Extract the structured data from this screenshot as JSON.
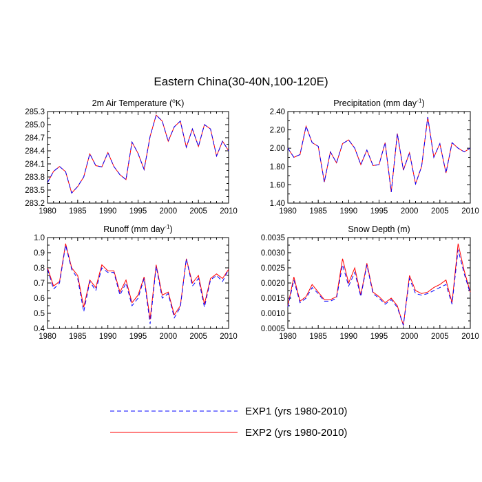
{
  "figure_title": "Eastern China(30-40N,100-120E)",
  "legend": {
    "exp1": "EXP1 (yrs 1980-2010)",
    "exp2": "EXP2 (yrs 1980-2010)"
  },
  "colors": {
    "exp1": "#0000ff",
    "exp2": "#ff0000"
  },
  "chart_data": [
    {
      "type": "line",
      "title": "2m Air Temperature (°K)",
      "title_parts": [
        "2m Air Temperature (",
        "o",
        "K)"
      ],
      "xlim": [
        1980,
        2010
      ],
      "ylim": [
        283.2,
        285.3
      ],
      "xticks": [
        1980,
        1985,
        1990,
        1995,
        2000,
        2005,
        2010
      ],
      "yticks": [
        "283.2",
        "283.5",
        "283.8",
        "284.1",
        "284.4",
        "284.7",
        "285.0",
        "285.3"
      ],
      "x": [
        1980,
        1981,
        1982,
        1983,
        1984,
        1985,
        1986,
        1987,
        1988,
        1989,
        1990,
        1991,
        1992,
        1993,
        1994,
        1995,
        1996,
        1997,
        1998,
        1999,
        2000,
        2001,
        2002,
        2003,
        2004,
        2005,
        2006,
        2007,
        2008,
        2009,
        2010
      ],
      "series": [
        {
          "name": "EXP1",
          "values": [
            283.67,
            283.93,
            284.04,
            283.92,
            283.43,
            283.58,
            283.8,
            284.33,
            284.06,
            284.03,
            284.36,
            284.04,
            283.85,
            283.74,
            284.6,
            284.34,
            283.97,
            284.73,
            285.22,
            285.08,
            284.62,
            284.95,
            285.08,
            284.48,
            284.9,
            284.5,
            285.0,
            284.9,
            284.28,
            284.62,
            284.4
          ]
        },
        {
          "name": "EXP2",
          "values": [
            283.67,
            283.93,
            284.04,
            283.92,
            283.43,
            283.58,
            283.8,
            284.33,
            284.06,
            284.03,
            284.36,
            284.04,
            283.85,
            283.74,
            284.6,
            284.34,
            283.97,
            284.73,
            285.22,
            285.08,
            284.62,
            284.95,
            285.08,
            284.48,
            284.9,
            284.5,
            285.0,
            284.9,
            284.28,
            284.62,
            284.4
          ]
        }
      ]
    },
    {
      "type": "line",
      "title": "Precipitation (mm day-1)",
      "title_parts": [
        "Precipitation (mm day",
        "-1",
        ")"
      ],
      "xlim": [
        1980,
        2010
      ],
      "ylim": [
        1.4,
        2.4
      ],
      "xticks": [
        1980,
        1985,
        1990,
        1995,
        2000,
        2005,
        2010
      ],
      "yticks": [
        "1.40",
        "1.60",
        "1.80",
        "2.00",
        "2.20",
        "2.40"
      ],
      "x": [
        1980,
        1981,
        1982,
        1983,
        1984,
        1985,
        1986,
        1987,
        1988,
        1989,
        1990,
        1991,
        1992,
        1993,
        1994,
        1995,
        1996,
        1997,
        1998,
        1999,
        2000,
        2001,
        2002,
        2003,
        2004,
        2005,
        2006,
        2007,
        2008,
        2009,
        2010
      ],
      "series": [
        {
          "name": "EXP1",
          "values": [
            2.0,
            1.9,
            1.93,
            2.24,
            2.06,
            2.02,
            1.63,
            1.96,
            1.84,
            2.05,
            2.09,
            2.0,
            1.82,
            1.98,
            1.81,
            1.82,
            2.06,
            1.52,
            2.16,
            1.76,
            1.95,
            1.61,
            1.8,
            2.34,
            1.9,
            2.05,
            1.73,
            2.06,
            2.0,
            1.96,
            2.0
          ]
        },
        {
          "name": "EXP2",
          "values": [
            2.0,
            1.9,
            1.93,
            2.24,
            2.06,
            2.02,
            1.63,
            1.96,
            1.84,
            2.05,
            2.09,
            2.0,
            1.82,
            1.98,
            1.81,
            1.82,
            2.06,
            1.52,
            2.16,
            1.76,
            1.95,
            1.61,
            1.8,
            2.34,
            1.9,
            2.05,
            1.73,
            2.06,
            2.0,
            1.96,
            2.0
          ]
        }
      ]
    },
    {
      "type": "line",
      "title": "Runoff (mm day-1)",
      "title_parts": [
        "Runoff (mm day",
        "-1",
        ")"
      ],
      "xlim": [
        1980,
        2010
      ],
      "ylim": [
        0.4,
        1.0
      ],
      "xticks": [
        1980,
        1985,
        1990,
        1995,
        2000,
        2005,
        2010
      ],
      "yticks": [
        "0.4",
        "0.5",
        "0.6",
        "0.7",
        "0.8",
        "0.9",
        "1.0"
      ],
      "x": [
        1980,
        1981,
        1982,
        1983,
        1984,
        1985,
        1986,
        1987,
        1988,
        1989,
        1990,
        1991,
        1992,
        1993,
        1994,
        1995,
        1996,
        1997,
        1998,
        1999,
        2000,
        2001,
        2002,
        2003,
        2004,
        2005,
        2006,
        2007,
        2008,
        2009,
        2010
      ],
      "series": [
        {
          "name": "EXP1",
          "values": [
            0.79,
            0.66,
            0.7,
            0.95,
            0.79,
            0.73,
            0.51,
            0.71,
            0.65,
            0.8,
            0.77,
            0.77,
            0.62,
            0.7,
            0.55,
            0.6,
            0.73,
            0.43,
            0.81,
            0.6,
            0.63,
            0.47,
            0.54,
            0.86,
            0.68,
            0.73,
            0.54,
            0.72,
            0.75,
            0.71,
            0.79
          ]
        },
        {
          "name": "EXP2",
          "values": [
            0.8,
            0.68,
            0.71,
            0.96,
            0.8,
            0.75,
            0.54,
            0.72,
            0.67,
            0.82,
            0.78,
            0.78,
            0.64,
            0.72,
            0.57,
            0.62,
            0.74,
            0.46,
            0.82,
            0.62,
            0.64,
            0.49,
            0.55,
            0.86,
            0.7,
            0.75,
            0.56,
            0.73,
            0.76,
            0.73,
            0.79
          ]
        }
      ]
    },
    {
      "type": "line",
      "title": "Snow Depth (m)",
      "title_parts": [
        "Snow Depth (m)",
        "",
        ""
      ],
      "xlim": [
        1980,
        2010
      ],
      "ylim": [
        0.0005,
        0.0035
      ],
      "xticks": [
        1980,
        1985,
        1990,
        1995,
        2000,
        2005,
        2010
      ],
      "yticks": [
        "0.0005",
        "0.0010",
        "0.0015",
        "0.0020",
        "0.0025",
        "0.0030",
        "0.0035"
      ],
      "x": [
        1980,
        1981,
        1982,
        1983,
        1984,
        1985,
        1986,
        1987,
        1988,
        1989,
        1990,
        1991,
        1992,
        1993,
        1994,
        1995,
        1996,
        1997,
        1998,
        1999,
        2000,
        2001,
        2002,
        2003,
        2004,
        2005,
        2006,
        2007,
        2008,
        2009,
        2010
      ],
      "series": [
        {
          "name": "EXP1",
          "values": [
            0.0012,
            0.0021,
            0.00135,
            0.0015,
            0.00185,
            0.00165,
            0.0014,
            0.0014,
            0.0015,
            0.0026,
            0.0019,
            0.00235,
            0.00155,
            0.0026,
            0.00165,
            0.0015,
            0.0013,
            0.00145,
            0.0012,
            0.0006,
            0.00215,
            0.00165,
            0.0016,
            0.00165,
            0.00175,
            0.00185,
            0.00195,
            0.0013,
            0.0031,
            0.0023,
            0.00165
          ]
        },
        {
          "name": "EXP2",
          "values": [
            0.00125,
            0.0022,
            0.0014,
            0.00155,
            0.00195,
            0.0017,
            0.00145,
            0.00145,
            0.00155,
            0.0028,
            0.002,
            0.0025,
            0.0016,
            0.00265,
            0.0017,
            0.00155,
            0.00135,
            0.0015,
            0.00125,
            0.0006,
            0.00225,
            0.00175,
            0.00165,
            0.0017,
            0.00185,
            0.00195,
            0.0021,
            0.00135,
            0.0033,
            0.0024,
            0.0017
          ]
        }
      ]
    }
  ]
}
